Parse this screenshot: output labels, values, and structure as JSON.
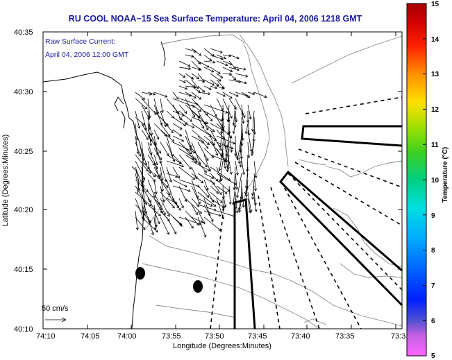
{
  "title": "RU COOL  NOAA−15  Sea Surface Temperature:  April 04, 2006 1218 GMT",
  "current_legend": {
    "line1": "Raw Surface Current:",
    "line2": "April 04, 2006 12:00 GMT"
  },
  "scale_label": "50 cm/s",
  "axes": {
    "xlabel": "Longitude (Degrees:Minutes)",
    "ylabel": "Latitude (Degrees:Minutes)",
    "x_ticks": [
      "74:10",
      "74:05",
      "74:00",
      "73:55",
      "73:50",
      "73:45",
      "73:40",
      "73:35",
      "73:3"
    ],
    "y_ticks": [
      "40:35",
      "40:30",
      "40:25",
      "40:20",
      "40:15",
      "40:10"
    ]
  },
  "colorbar": {
    "label": "Temperature (°C)",
    "ticks": [
      "15",
      "14",
      "13",
      "12",
      "11",
      "10",
      "9",
      "8",
      "7",
      "6",
      "5"
    ],
    "colors": [
      "#ff55ff",
      "#3030c0",
      "#0060ff",
      "#00c0ff",
      "#00d0a0",
      "#20c040",
      "#a0e000",
      "#ffe000",
      "#ff8000",
      "#ff0000",
      "#b00000"
    ]
  }
}
